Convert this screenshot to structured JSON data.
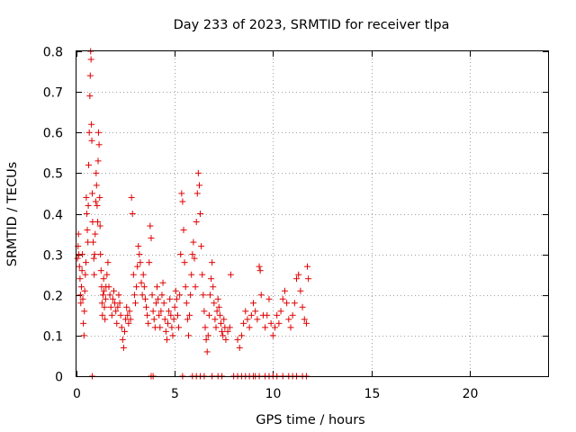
{
  "chart_data": {
    "type": "scatter",
    "title": "Day 233 of 2023, SRMTID for receiver tlpa",
    "xlabel": "GPS time / hours",
    "ylabel": "SRMTID / TECUs",
    "xlim": [
      0,
      24
    ],
    "ylim": [
      0,
      0.8
    ],
    "xticks": [
      "0",
      "5",
      "10",
      "15",
      "20"
    ],
    "yticks": [
      "0",
      "0.1",
      "0.2",
      "0.3",
      "0.4",
      "0.5",
      "0.6",
      "0.7",
      "0.8"
    ],
    "grid": true,
    "marker": "+",
    "color": "#e00000",
    "series": [
      {
        "name": "SRMTID",
        "points": [
          [
            0.05,
            0.29
          ],
          [
            0.08,
            0.32
          ],
          [
            0.1,
            0.35
          ],
          [
            0.12,
            0.3
          ],
          [
            0.15,
            0.27
          ],
          [
            0.18,
            0.24
          ],
          [
            0.2,
            0.2
          ],
          [
            0.22,
            0.18
          ],
          [
            0.25,
            0.22
          ],
          [
            0.28,
            0.26
          ],
          [
            0.3,
            0.3
          ],
          [
            0.32,
            0.19
          ],
          [
            0.35,
            0.13
          ],
          [
            0.38,
            0.1
          ],
          [
            0.4,
            0.16
          ],
          [
            0.42,
            0.21
          ],
          [
            0.45,
            0.25
          ],
          [
            0.48,
            0.28
          ],
          [
            0.5,
            0.44
          ],
          [
            0.52,
            0.4
          ],
          [
            0.55,
            0.36
          ],
          [
            0.58,
            0.33
          ],
          [
            0.6,
            0.42
          ],
          [
            0.62,
            0.52
          ],
          [
            0.65,
            0.6
          ],
          [
            0.68,
            0.69
          ],
          [
            0.7,
            0.74
          ],
          [
            0.72,
            0.8
          ],
          [
            0.74,
            0.78
          ],
          [
            0.76,
            0.62
          ],
          [
            0.78,
            0.58
          ],
          [
            0.8,
            0.45
          ],
          [
            0.82,
            0.38
          ],
          [
            0.85,
            0.33
          ],
          [
            0.88,
            0.29
          ],
          [
            0.9,
            0.25
          ],
          [
            0.92,
            0.3
          ],
          [
            0.95,
            0.35
          ],
          [
            0.98,
            0.43
          ],
          [
            1.0,
            0.5
          ],
          [
            1.02,
            0.47
          ],
          [
            1.05,
            0.42
          ],
          [
            1.08,
            0.38
          ],
          [
            1.1,
            0.53
          ],
          [
            1.12,
            0.6
          ],
          [
            1.15,
            0.57
          ],
          [
            1.18,
            0.44
          ],
          [
            1.2,
            0.37
          ],
          [
            1.22,
            0.3
          ],
          [
            1.25,
            0.26
          ],
          [
            1.28,
            0.22
          ],
          [
            1.3,
            0.18
          ],
          [
            1.32,
            0.15
          ],
          [
            1.35,
            0.2
          ],
          [
            1.38,
            0.24
          ],
          [
            1.4,
            0.21
          ],
          [
            1.42,
            0.17
          ],
          [
            1.45,
            0.14
          ],
          [
            1.48,
            0.19
          ],
          [
            1.5,
            0.22
          ],
          [
            1.55,
            0.25
          ],
          [
            1.6,
            0.28
          ],
          [
            1.65,
            0.22
          ],
          [
            1.7,
            0.2
          ],
          [
            1.75,
            0.17
          ],
          [
            1.8,
            0.15
          ],
          [
            1.85,
            0.19
          ],
          [
            1.9,
            0.21
          ],
          [
            1.95,
            0.18
          ],
          [
            2.0,
            0.16
          ],
          [
            2.05,
            0.13
          ],
          [
            2.1,
            0.17
          ],
          [
            2.15,
            0.2
          ],
          [
            2.2,
            0.18
          ],
          [
            2.25,
            0.15
          ],
          [
            2.3,
            0.12
          ],
          [
            2.35,
            0.09
          ],
          [
            2.4,
            0.07
          ],
          [
            2.45,
            0.11
          ],
          [
            2.5,
            0.14
          ],
          [
            2.55,
            0.17
          ],
          [
            2.6,
            0.15
          ],
          [
            2.65,
            0.13
          ],
          [
            2.7,
            0.16
          ],
          [
            2.75,
            0.14
          ],
          [
            2.8,
            0.44
          ],
          [
            2.85,
            0.4
          ],
          [
            2.9,
            0.25
          ],
          [
            2.95,
            0.2
          ],
          [
            3.0,
            0.18
          ],
          [
            3.05,
            0.22
          ],
          [
            3.1,
            0.27
          ],
          [
            3.15,
            0.32
          ],
          [
            3.2,
            0.3
          ],
          [
            3.25,
            0.28
          ],
          [
            3.3,
            0.23
          ],
          [
            3.35,
            0.2
          ],
          [
            3.4,
            0.25
          ],
          [
            3.45,
            0.22
          ],
          [
            3.5,
            0.19
          ],
          [
            3.55,
            0.17
          ],
          [
            3.6,
            0.15
          ],
          [
            3.65,
            0.13
          ],
          [
            3.7,
            0.28
          ],
          [
            3.75,
            0.37
          ],
          [
            3.8,
            0.34
          ],
          [
            3.85,
            0.2
          ],
          [
            3.9,
            0.16
          ],
          [
            3.95,
            0.14
          ],
          [
            4.0,
            0.12
          ],
          [
            4.05,
            0.18
          ],
          [
            4.1,
            0.22
          ],
          [
            4.15,
            0.19
          ],
          [
            4.2,
            0.15
          ],
          [
            4.25,
            0.12
          ],
          [
            4.3,
            0.16
          ],
          [
            4.35,
            0.2
          ],
          [
            4.4,
            0.23
          ],
          [
            4.45,
            0.18
          ],
          [
            4.5,
            0.14
          ],
          [
            4.55,
            0.11
          ],
          [
            4.6,
            0.09
          ],
          [
            4.65,
            0.13
          ],
          [
            4.7,
            0.16
          ],
          [
            4.75,
            0.19
          ],
          [
            4.8,
            0.15
          ],
          [
            4.85,
            0.12
          ],
          [
            4.9,
            0.1
          ],
          [
            4.95,
            0.14
          ],
          [
            5.0,
            0.17
          ],
          [
            5.05,
            0.21
          ],
          [
            5.1,
            0.19
          ],
          [
            5.15,
            0.15
          ],
          [
            5.2,
            0.12
          ],
          [
            5.25,
            0.2
          ],
          [
            5.3,
            0.3
          ],
          [
            5.35,
            0.45
          ],
          [
            5.4,
            0.43
          ],
          [
            5.45,
            0.36
          ],
          [
            5.5,
            0.28
          ],
          [
            5.55,
            0.22
          ],
          [
            5.6,
            0.18
          ],
          [
            5.65,
            0.14
          ],
          [
            5.7,
            0.1
          ],
          [
            5.75,
            0.15
          ],
          [
            5.8,
            0.2
          ],
          [
            5.85,
            0.25
          ],
          [
            5.9,
            0.3
          ],
          [
            5.95,
            0.33
          ],
          [
            6.0,
            0.29
          ],
          [
            6.05,
            0.22
          ],
          [
            6.1,
            0.38
          ],
          [
            6.15,
            0.45
          ],
          [
            6.2,
            0.5
          ],
          [
            6.25,
            0.47
          ],
          [
            6.3,
            0.4
          ],
          [
            6.35,
            0.32
          ],
          [
            6.4,
            0.25
          ],
          [
            6.45,
            0.2
          ],
          [
            6.5,
            0.16
          ],
          [
            6.55,
            0.12
          ],
          [
            6.6,
            0.09
          ],
          [
            6.65,
            0.06
          ],
          [
            6.7,
            0.1
          ],
          [
            6.75,
            0.15
          ],
          [
            6.8,
            0.2
          ],
          [
            6.85,
            0.24
          ],
          [
            6.9,
            0.28
          ],
          [
            6.95,
            0.22
          ],
          [
            7.0,
            0.18
          ],
          [
            7.05,
            0.14
          ],
          [
            7.1,
            0.12
          ],
          [
            7.15,
            0.16
          ],
          [
            7.2,
            0.19
          ],
          [
            7.25,
            0.17
          ],
          [
            7.3,
            0.15
          ],
          [
            7.35,
            0.13
          ],
          [
            7.4,
            0.11
          ],
          [
            7.45,
            0.1
          ],
          [
            7.5,
            0.14
          ],
          [
            7.55,
            0.12
          ],
          [
            7.6,
            0.09
          ],
          [
            7.7,
            0.11
          ],
          [
            7.8,
            0.12
          ],
          [
            7.85,
            0.25
          ],
          [
            8.2,
            0.09
          ],
          [
            8.3,
            0.07
          ],
          [
            8.4,
            0.1
          ],
          [
            8.5,
            0.13
          ],
          [
            8.6,
            0.16
          ],
          [
            8.7,
            0.14
          ],
          [
            8.8,
            0.12
          ],
          [
            8.9,
            0.15
          ],
          [
            9.0,
            0.18
          ],
          [
            9.1,
            0.16
          ],
          [
            9.2,
            0.14
          ],
          [
            9.3,
            0.27
          ],
          [
            9.35,
            0.26
          ],
          [
            9.4,
            0.2
          ],
          [
            9.5,
            0.15
          ],
          [
            9.6,
            0.12
          ],
          [
            9.7,
            0.15
          ],
          [
            9.8,
            0.19
          ],
          [
            9.9,
            0.13
          ],
          [
            10.0,
            0.1
          ],
          [
            10.1,
            0.12
          ],
          [
            10.2,
            0.15
          ],
          [
            10.3,
            0.13
          ],
          [
            10.4,
            0.16
          ],
          [
            10.5,
            0.19
          ],
          [
            10.6,
            0.21
          ],
          [
            10.7,
            0.18
          ],
          [
            10.8,
            0.14
          ],
          [
            10.9,
            0.12
          ],
          [
            11.0,
            0.15
          ],
          [
            11.1,
            0.18
          ],
          [
            11.2,
            0.24
          ],
          [
            11.3,
            0.25
          ],
          [
            11.4,
            0.21
          ],
          [
            11.5,
            0.17
          ],
          [
            11.6,
            0.14
          ],
          [
            11.7,
            0.13
          ],
          [
            11.75,
            0.27
          ],
          [
            11.8,
            0.24
          ],
          [
            0.8,
            0
          ],
          [
            3.8,
            0
          ],
          [
            3.9,
            0
          ],
          [
            5.4,
            0
          ],
          [
            5.9,
            0
          ],
          [
            6.1,
            0
          ],
          [
            6.3,
            0
          ],
          [
            6.5,
            0
          ],
          [
            6.9,
            0
          ],
          [
            7.2,
            0
          ],
          [
            7.4,
            0
          ],
          [
            8.0,
            0
          ],
          [
            8.2,
            0
          ],
          [
            8.4,
            0
          ],
          [
            8.6,
            0
          ],
          [
            8.8,
            0
          ],
          [
            9.0,
            0
          ],
          [
            9.1,
            0
          ],
          [
            9.3,
            0
          ],
          [
            9.6,
            0
          ],
          [
            9.8,
            0
          ],
          [
            10.0,
            0
          ],
          [
            10.2,
            0
          ],
          [
            10.5,
            0
          ],
          [
            10.8,
            0
          ],
          [
            11.0,
            0
          ],
          [
            11.2,
            0
          ],
          [
            11.5,
            0
          ],
          [
            11.7,
            0
          ]
        ]
      }
    ]
  }
}
